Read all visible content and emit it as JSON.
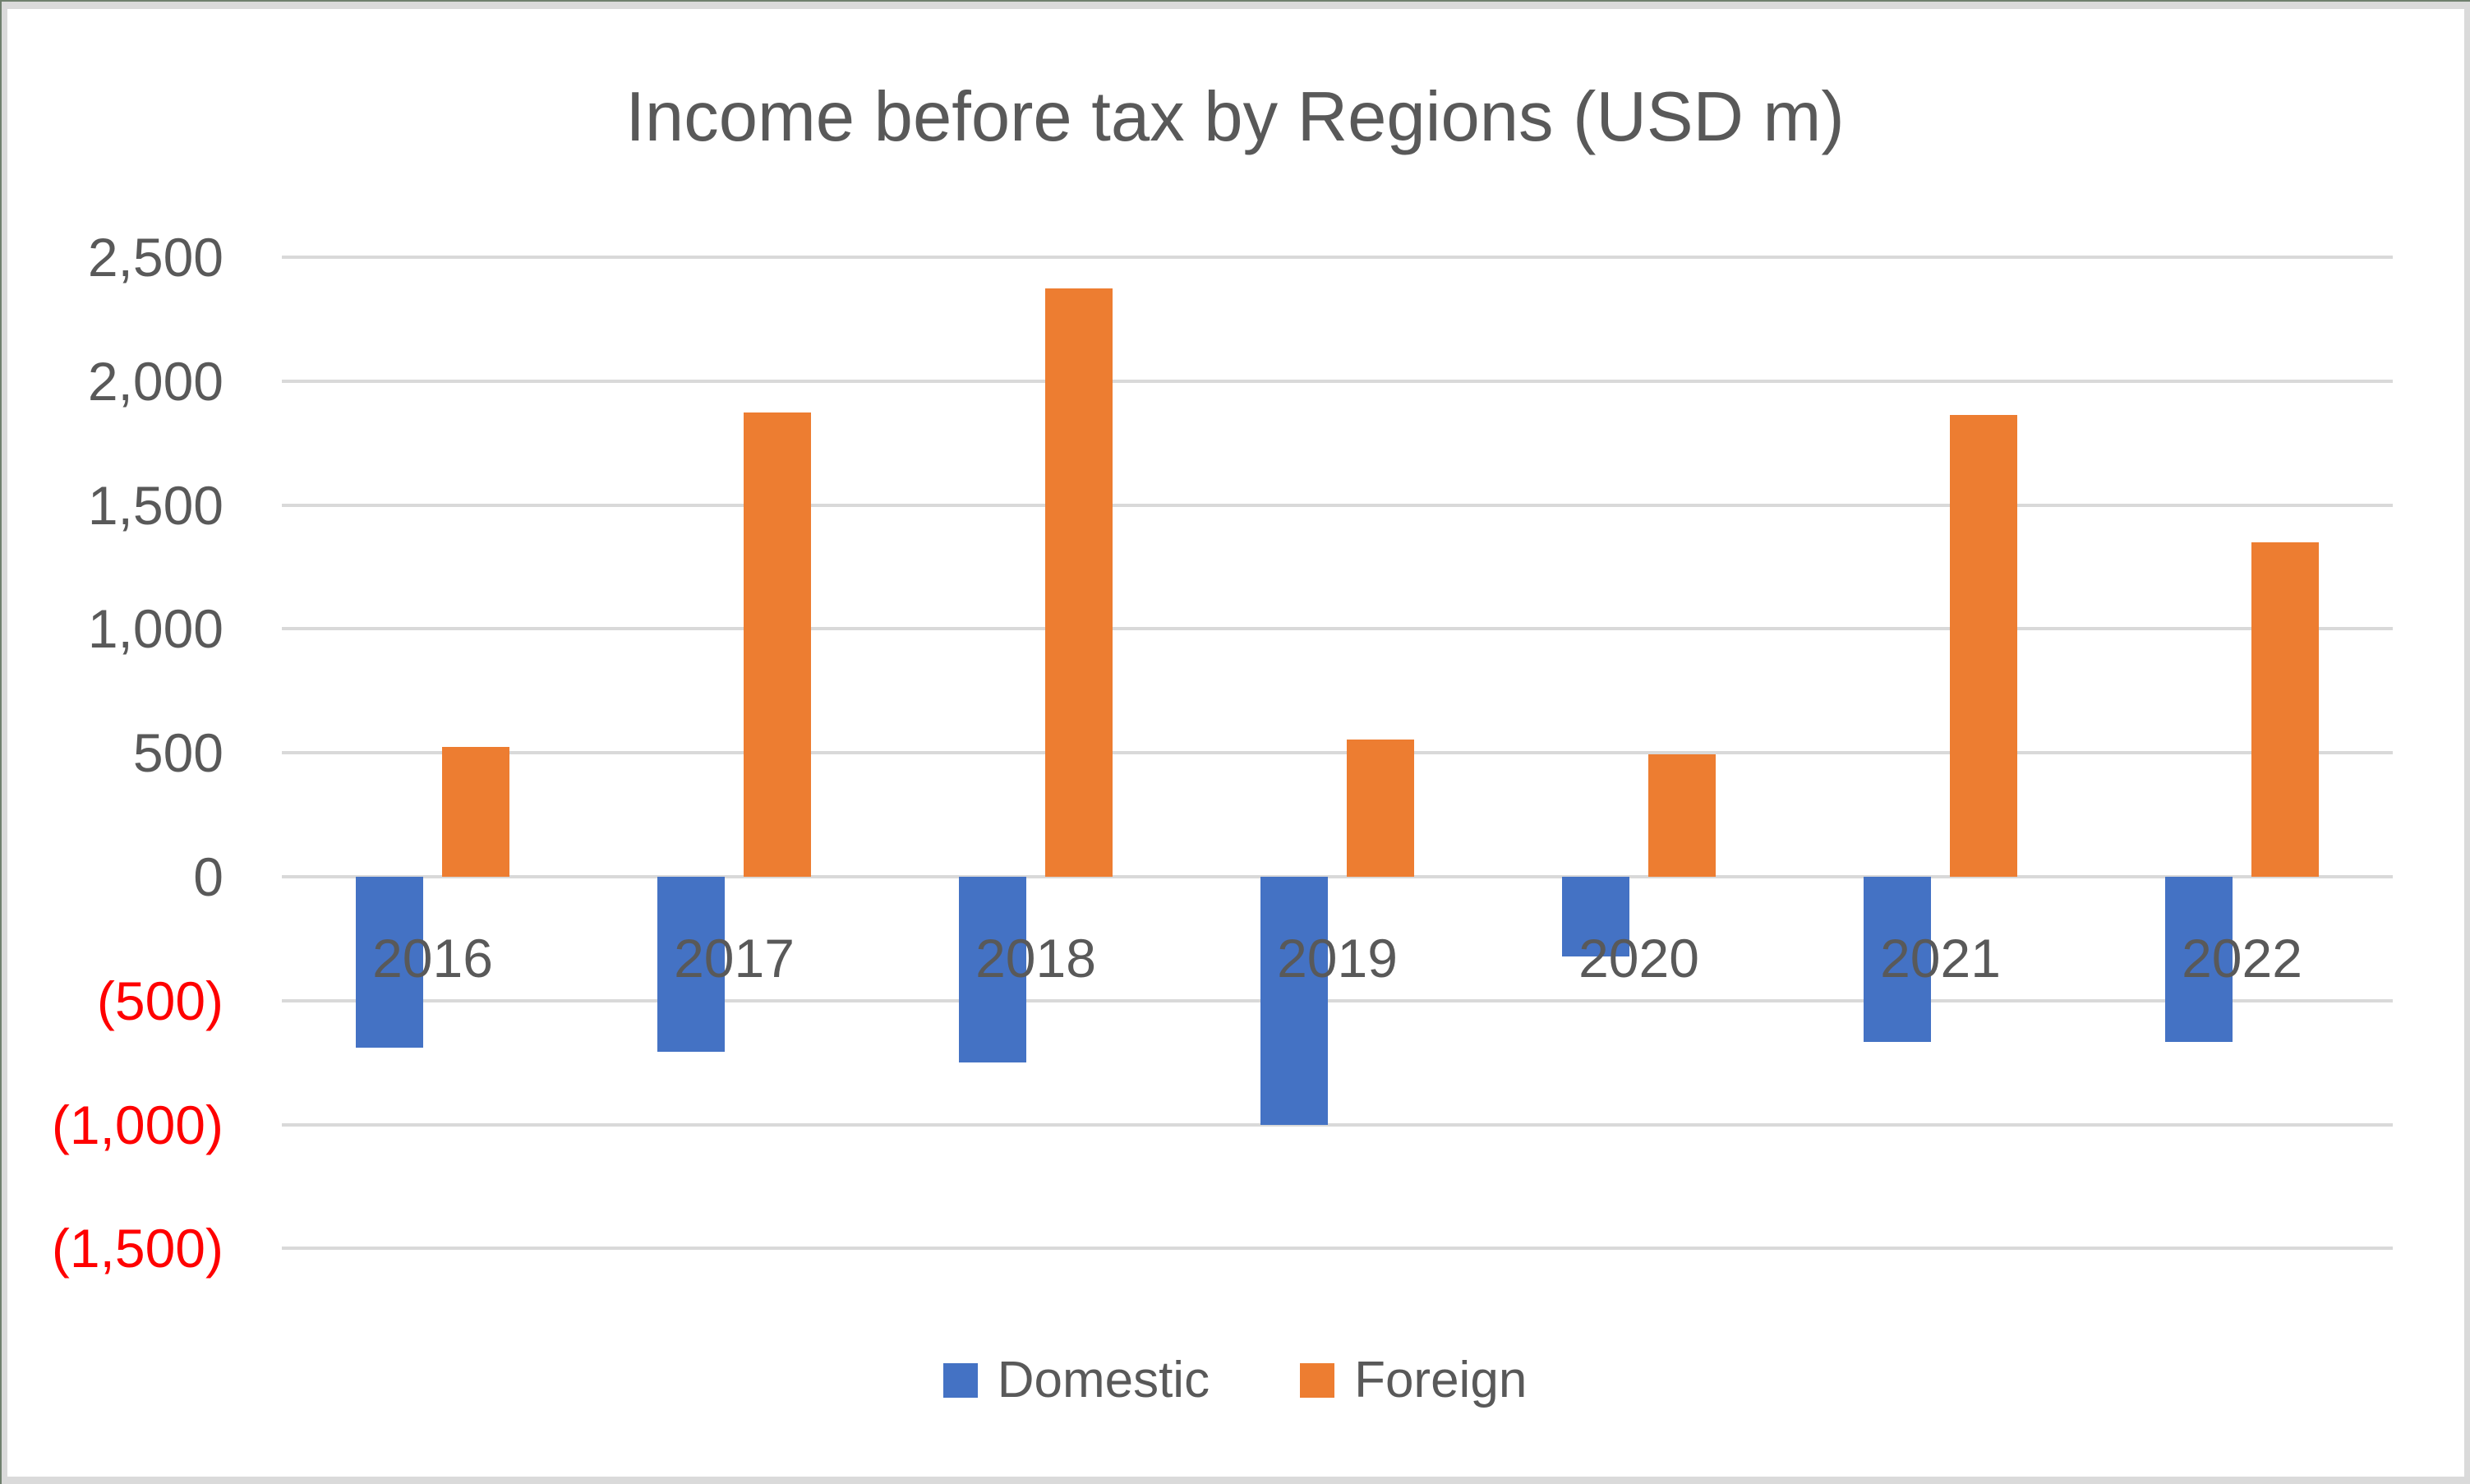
{
  "chart_data": {
    "type": "bar",
    "title": "Income before tax by Regions (USD m)",
    "categories": [
      "2016",
      "2017",
      "2018",
      "2019",
      "2020",
      "2021",
      "2022"
    ],
    "series": [
      {
        "name": "Domestic",
        "color": "#4472C4",
        "values": [
          -690,
          -705,
          -750,
          -1000,
          -320,
          -665,
          -665
        ]
      },
      {
        "name": "Foreign",
        "color": "#ED7D31",
        "values": [
          525,
          1875,
          2375,
          555,
          495,
          1865,
          1350
        ]
      }
    ],
    "y_axis": {
      "min": -1500,
      "max": 2500,
      "step": 500,
      "tick_labels": [
        "2,500",
        "2,000",
        "1,500",
        "1,000",
        "500",
        "0",
        "(500)",
        "(1,000)",
        "(1,500)"
      ],
      "tick_values": [
        2500,
        2000,
        1500,
        1000,
        500,
        0,
        -500,
        -1000,
        -1500
      ],
      "label_color": "#595959",
      "negative_label_color": "#FF0000"
    },
    "grid": true,
    "gridline_color": "#D9D9D9",
    "legend_position": "bottom",
    "unit": "USD m"
  },
  "frame": {
    "outer_border_color": "#6F7F6D",
    "margin_color": "#DADADA",
    "canvas_color": "#FFFFFF"
  }
}
